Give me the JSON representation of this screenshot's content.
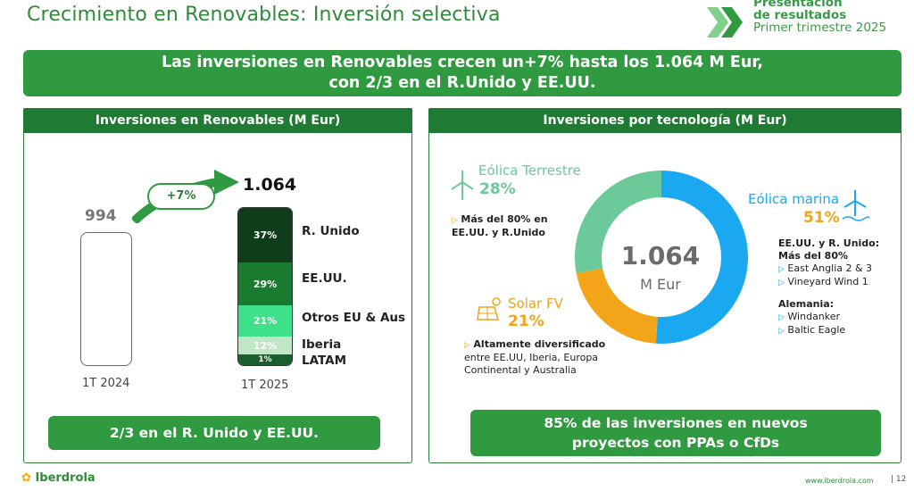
{
  "header": {
    "title": "Crecimiento en Renovables: Inversión selectiva",
    "presentation": [
      "Presentación",
      "de resultados",
      "Primer trimestre 2025"
    ]
  },
  "banner": {
    "line1": "Las inversiones en Renovables crecen un+7% hasta los 1.064 M Eur,",
    "line2": "con 2/3 en el R.Unido y EE.UU."
  },
  "left_panel": {
    "title": "Inversiones en Renovables (M Eur)",
    "growth_badge": "+7%",
    "bar_2024": {
      "value": "994",
      "label": "1T 2024"
    },
    "bar_2025": {
      "value": "1.064",
      "label": "1T 2025",
      "segments": [
        {
          "pct": "37%",
          "label": "R. Unido",
          "color": "#0f3d1c"
        },
        {
          "pct": "29%",
          "label": "EE.UU.",
          "color": "#1a7a30"
        },
        {
          "pct": "21%",
          "label": "Otros EU & Aus",
          "color": "#3ee08a"
        },
        {
          "pct": "12%",
          "label": "Iberia",
          "color": "#bfe6c7"
        },
        {
          "pct": "1%",
          "label": "LATAM",
          "color": "#1c5e2b"
        }
      ]
    },
    "footer_button": "2/3 en el R. Unido y EE.UU."
  },
  "right_panel": {
    "title": "Inversiones por tecnología (M Eur)",
    "center_value": "1.064",
    "center_unit": "M Eur",
    "onshore": {
      "name": "Eólica Terrestre",
      "pct": "28%",
      "note_bold": "Más del 80% en EE.UU. y R.Unido",
      "color": "#6cc99a"
    },
    "offshore": {
      "name": "Eólica marina",
      "pct": "51%",
      "color": "#1aa9f0",
      "group1_title": "EE.UU. y R. Unido: Más del 80%",
      "group1_items": [
        "East Anglia 2 & 3",
        "Vineyard Wind 1"
      ],
      "group2_title": "Alemania:",
      "group2_items": [
        "Windanker",
        "Baltic Eagle"
      ]
    },
    "solar": {
      "name": "Solar FV",
      "pct": "21%",
      "note_bold": "Altamente diversificado",
      "note_rest": "entre EE.UU, Iberia, Europa Continental y Australia",
      "color": "#f3a418"
    },
    "footer_button": "85% de las inversiones en nuevos proyectos con PPAs o CfDs"
  },
  "chart_data": {
    "type": "pie",
    "title": "Inversiones por tecnología (M Eur)",
    "categories": [
      "Eólica marina",
      "Eólica Terrestre",
      "Solar FV"
    ],
    "values": [
      51,
      28,
      21
    ],
    "colors": [
      "#1aa9f0",
      "#6cc99a",
      "#f3a418"
    ]
  },
  "footer": {
    "brand": "Iberdrola",
    "url": "www.iberdrola.com",
    "page": "| 12"
  }
}
